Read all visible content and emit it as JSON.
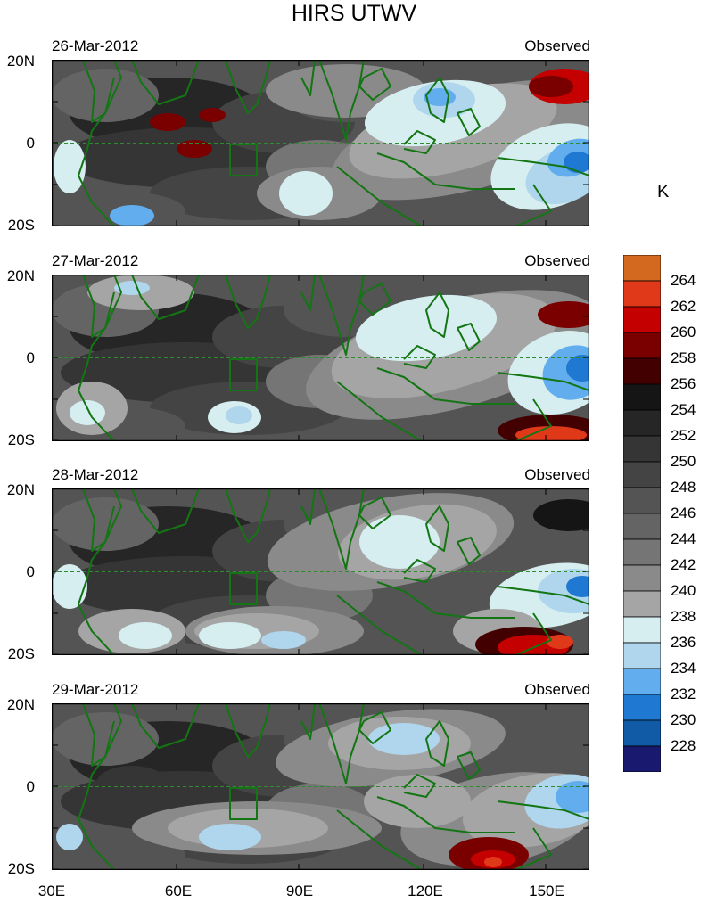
{
  "title": "HIRS UTWV",
  "units": "K",
  "panels": [
    {
      "date": "26-Mar-2012",
      "label": "Observed",
      "lat_labels": [
        "20N",
        "0",
        "20S"
      ]
    },
    {
      "date": "27-Mar-2012",
      "label": "Observed",
      "lat_labels": [
        "20N",
        "0",
        "20S"
      ]
    },
    {
      "date": "28-Mar-2012",
      "label": "Observed",
      "lat_labels": [
        "20N",
        "0",
        "20S"
      ]
    },
    {
      "date": "29-Mar-2012",
      "label": "Observed",
      "lat_labels": [
        "20N",
        "0",
        "20S"
      ]
    }
  ],
  "lon_labels": [
    "30E",
    "60E",
    "90E",
    "120E",
    "150E"
  ],
  "colorbar": {
    "labels": [
      "264",
      "262",
      "260",
      "258",
      "256",
      "254",
      "252",
      "250",
      "248",
      "246",
      "244",
      "242",
      "240",
      "238",
      "236",
      "234",
      "232",
      "230",
      "228"
    ],
    "colors": [
      "#d2691e",
      "#e0391a",
      "#c40000",
      "#7a0000",
      "#420000",
      "#151515",
      "#262626",
      "#353535",
      "#444444",
      "#545454",
      "#646464",
      "#757575",
      "#8a8a8a",
      "#a5a5a5",
      "#d6eef0",
      "#afd6ec",
      "#62adee",
      "#1f78d2",
      "#105aa6",
      "#191970"
    ]
  },
  "map_colors": {
    "land": "#137513",
    "equator": "#2e8b2e"
  }
}
